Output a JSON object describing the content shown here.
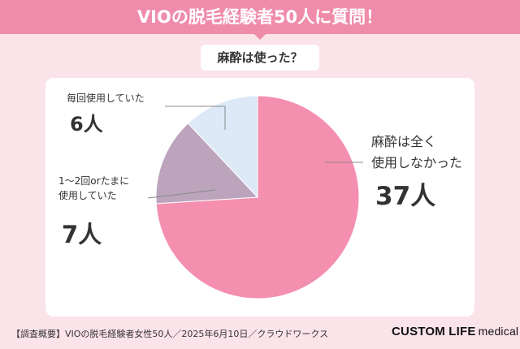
{
  "header": {
    "title": "VIOの脱毛経験者50人に質問！"
  },
  "question": {
    "text": "麻酔は使った？"
  },
  "colors": {
    "header_bg": "#f08cab",
    "background": "#fbe3ea",
    "slice_pink": "#f48fb0",
    "slice_mauve": "#bca4bd",
    "slice_blue": "#dde9f7"
  },
  "chart_data": {
    "type": "pie",
    "title": "麻酔は使った？",
    "slices": [
      {
        "label_lines": [
          "麻酔は全く",
          "使用しなかった"
        ],
        "value": 37,
        "value_label": "37人",
        "color": "#f48fb0"
      },
      {
        "label_lines": [
          "1〜2回orたまに",
          "使用していた"
        ],
        "value": 7,
        "value_label": "7人",
        "color": "#bca4bd"
      },
      {
        "label_lines": [
          "毎回使用していた"
        ],
        "value": 6,
        "value_label": "6人",
        "color": "#dde9f7"
      }
    ],
    "total": 50,
    "start_angle": "12 o'clock",
    "direction": "clockwise"
  },
  "footer": {
    "note": "【調査概要】VIOの脱毛経験者女性50人／2025年6月10日／クラウドワークス",
    "logo_main": "CUSTOM LIFE",
    "logo_sub": "medical"
  }
}
